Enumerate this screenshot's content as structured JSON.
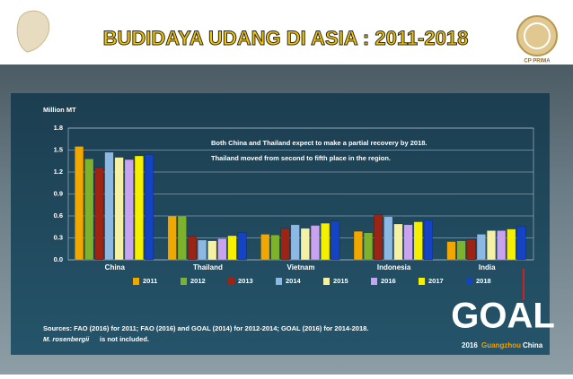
{
  "header": {
    "title": "BUDIDAYA UDANG DI ASIA : 2011-2018",
    "right_logo_text": "CP PRIMA"
  },
  "chart_data": {
    "type": "bar",
    "y_label": "Million MT",
    "annotations": [
      "Both China and Thailand expect to make a partial recovery by 2018.",
      "Thailand moved from second to fifth place in the region."
    ],
    "categories": [
      "China",
      "Thailand",
      "Vietnam",
      "Indonesia",
      "India"
    ],
    "series": [
      {
        "name": "2011",
        "color": "#f0a800",
        "values": [
          1.55,
          0.6,
          0.35,
          0.39,
          0.25
        ]
      },
      {
        "name": "2012",
        "color": "#7cb22c",
        "values": [
          1.38,
          0.6,
          0.34,
          0.37,
          0.26
        ]
      },
      {
        "name": "2013",
        "color": "#9c2414",
        "values": [
          1.26,
          0.32,
          0.43,
          0.62,
          0.28
        ]
      },
      {
        "name": "2014",
        "color": "#8cb8e4",
        "values": [
          1.47,
          0.27,
          0.48,
          0.59,
          0.35
        ]
      },
      {
        "name": "2015",
        "color": "#f4f0a4",
        "values": [
          1.4,
          0.26,
          0.43,
          0.49,
          0.4
        ]
      },
      {
        "name": "2016",
        "color": "#c8a4f0",
        "values": [
          1.37,
          0.29,
          0.47,
          0.48,
          0.4
        ]
      },
      {
        "name": "2017",
        "color": "#f4f000",
        "values": [
          1.42,
          0.33,
          0.5,
          0.52,
          0.42
        ]
      },
      {
        "name": "2018",
        "color": "#1444c4",
        "values": [
          1.44,
          0.37,
          0.53,
          0.54,
          0.46
        ]
      }
    ],
    "ylim": [
      0,
      1.8
    ],
    "yticks": [
      {
        "value": 0,
        "label": "0.0"
      },
      0.3,
      0.6,
      0.9,
      1.2,
      1.5,
      1.8
    ],
    "grid": true
  },
  "sources": {
    "line1": "Sources:  FAO (2016) for 2011; FAO (2016) and GOAL (2014) for 2012-2014; GOAL (2016) for 2014-2018.",
    "species": "M. rosenbergii",
    "line2_rest": "is not included."
  },
  "goal_logo": {
    "name": "GOAL",
    "year": "2016",
    "city": "Guangzhou",
    "country": "China"
  }
}
